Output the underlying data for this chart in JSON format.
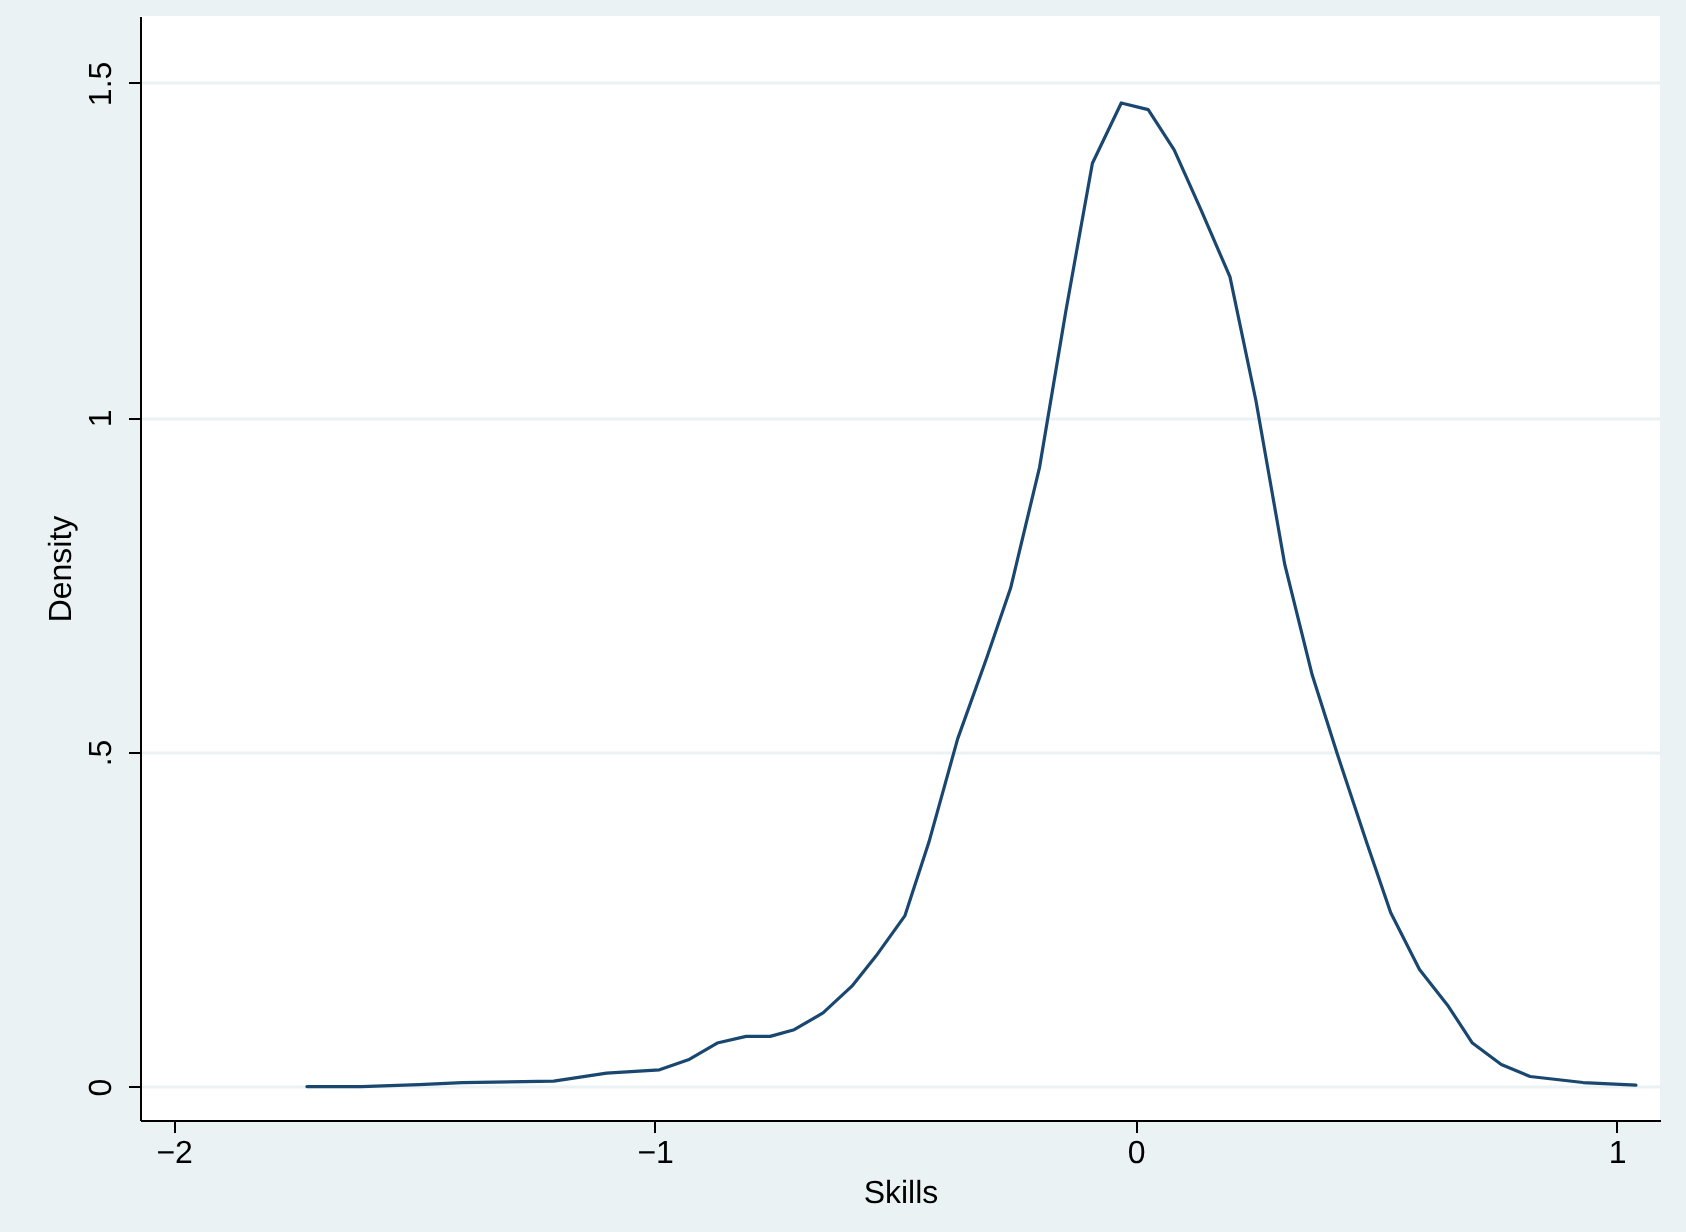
{
  "chart_data": {
    "type": "line",
    "xlabel": "Skills",
    "ylabel": "Density",
    "x": [
      -1.723,
      -1.61,
      -1.49,
      -1.4,
      -1.21,
      -1.1,
      -0.99,
      -0.93,
      -0.87,
      -0.81,
      -0.76,
      -0.71,
      -0.65,
      -0.59,
      -0.54,
      -0.48,
      -0.43,
      -0.37,
      -0.31,
      -0.26,
      -0.2,
      -0.145,
      -0.09,
      -0.03,
      0.026,
      0.08,
      0.136,
      0.196,
      0.25,
      0.31,
      0.367,
      0.42,
      0.48,
      0.53,
      0.59,
      0.65,
      0.7,
      0.76,
      0.82,
      0.93,
      1.04
    ],
    "series": [
      {
        "color": "#1a476f",
        "values": [
          0.0,
          0.0,
          0.003,
          0.006,
          0.008,
          0.02,
          0.025,
          0.04,
          0.065,
          0.075,
          0.075,
          0.085,
          0.11,
          0.15,
          0.195,
          0.255,
          0.365,
          0.52,
          0.64,
          0.745,
          0.925,
          1.16,
          1.38,
          1.47,
          1.46,
          1.4,
          1.31,
          1.21,
          1.025,
          0.78,
          0.615,
          0.495,
          0.365,
          0.26,
          0.175,
          0.12,
          0.065,
          0.033,
          0.015,
          0.006,
          0.002
        ]
      }
    ],
    "xlim": [
      -2.07,
      1.09
    ],
    "ylim": [
      -0.05,
      1.6
    ],
    "xticks": [
      {
        "value": -2,
        "label": "−2"
      },
      {
        "value": -1,
        "label": "−1"
      },
      0,
      1
    ],
    "yticks": [
      0,
      {
        "value": 0.5,
        "label": ".5"
      },
      1,
      1.5
    ],
    "grid": "y",
    "marker": "none",
    "line_style": "solid"
  }
}
